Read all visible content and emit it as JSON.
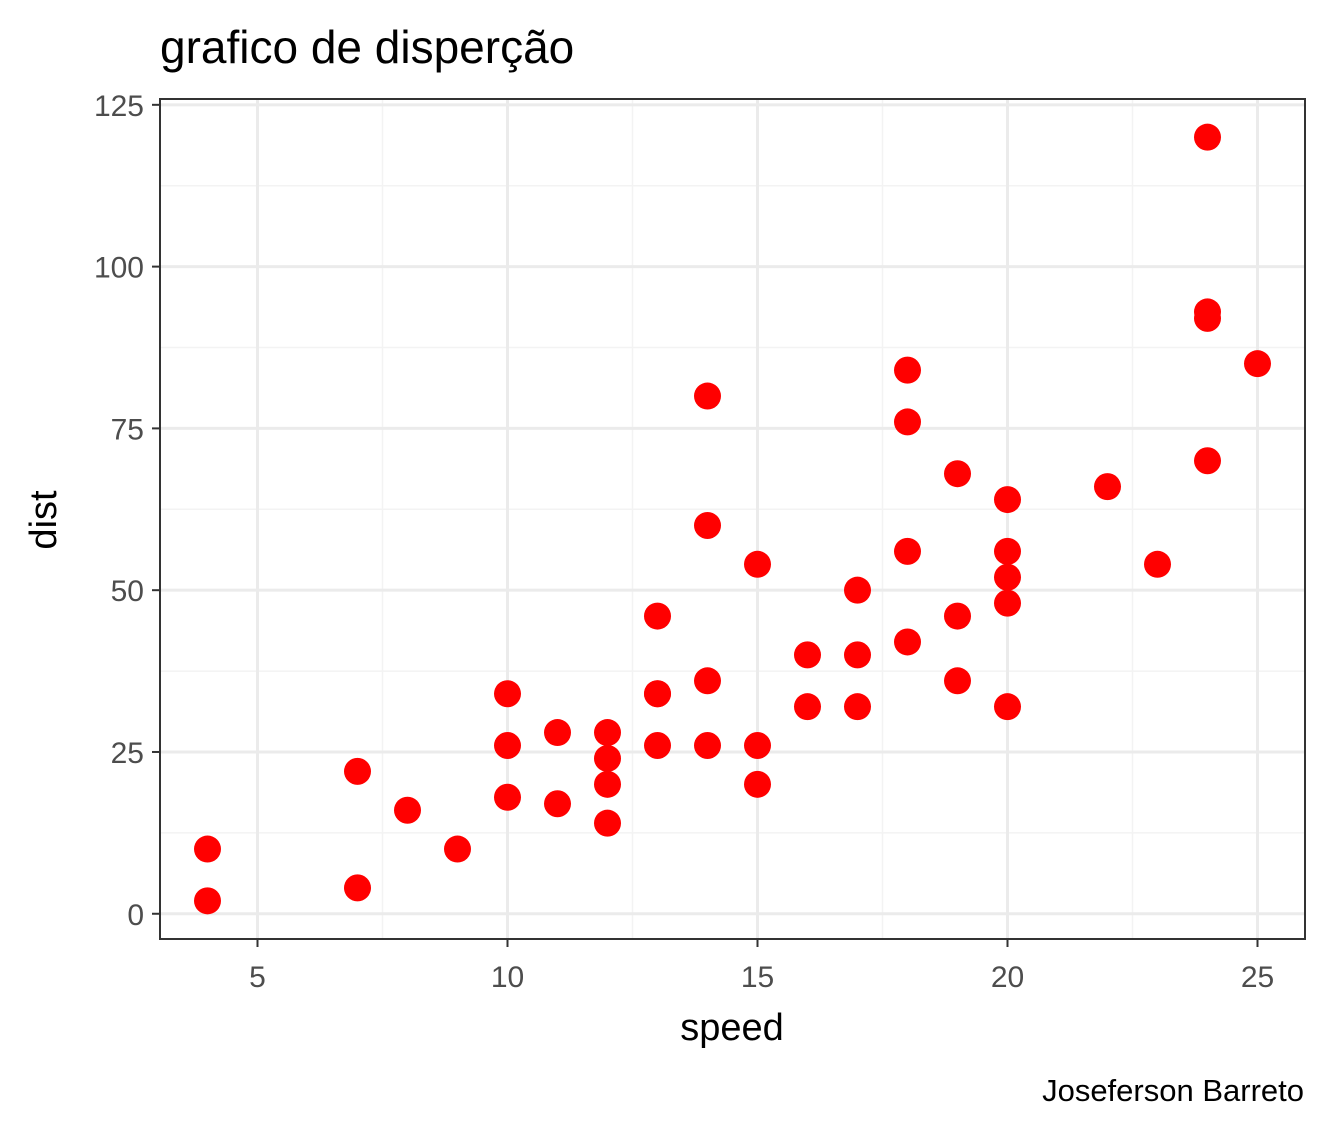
{
  "chart_data": {
    "type": "scatter",
    "title": "grafico de disperção",
    "xlabel": "speed",
    "ylabel": "dist",
    "caption": "Joseferson Barreto",
    "xlim": [
      3.05,
      25.95
    ],
    "ylim": [
      -3.9,
      125.9
    ],
    "x_ticks": [
      5,
      10,
      15,
      20,
      25
    ],
    "x_tick_labels": [
      "5",
      "10",
      "15",
      "20",
      "25"
    ],
    "x_minor_ticks": [
      7.5,
      12.5,
      17.5,
      22.5
    ],
    "y_ticks": [
      0,
      25,
      50,
      75,
      100,
      125
    ],
    "y_tick_labels": [
      "0",
      "25",
      "50",
      "75",
      "100",
      "125"
    ],
    "y_minor_ticks": [
      12.5,
      37.5,
      62.5,
      87.5,
      112.5
    ],
    "grid": true,
    "legend": "none",
    "point_color": "#ff0000",
    "x": [
      4,
      4,
      7,
      7,
      8,
      9,
      10,
      10,
      10,
      11,
      11,
      12,
      12,
      12,
      12,
      13,
      13,
      13,
      13,
      14,
      14,
      14,
      14,
      15,
      15,
      15,
      16,
      16,
      17,
      17,
      17,
      18,
      18,
      18,
      18,
      19,
      19,
      19,
      20,
      20,
      20,
      20,
      20,
      22,
      23,
      24,
      24,
      24,
      24,
      25
    ],
    "y": [
      2,
      10,
      4,
      22,
      16,
      10,
      18,
      26,
      34,
      17,
      28,
      14,
      20,
      24,
      28,
      26,
      34,
      34,
      46,
      26,
      36,
      60,
      80,
      20,
      26,
      54,
      32,
      40,
      32,
      40,
      50,
      42,
      56,
      76,
      84,
      36,
      46,
      68,
      32,
      48,
      52,
      56,
      64,
      66,
      54,
      70,
      92,
      93,
      120,
      85
    ]
  },
  "colors": {
    "panel_border": "#333333",
    "grid_major": "#ebebeb",
    "grid_minor": "#f3f3f3",
    "tick_mark": "#333333"
  }
}
